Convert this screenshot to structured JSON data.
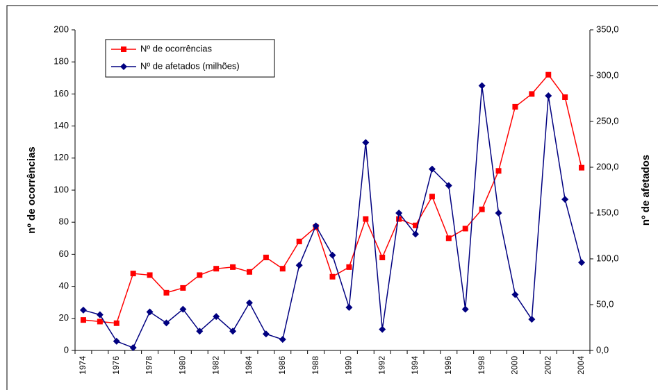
{
  "chart_data": {
    "type": "line",
    "categories": [
      "1974",
      null,
      "1976",
      null,
      "1978",
      null,
      "1980",
      null,
      "1982",
      null,
      "1984",
      null,
      "1986",
      null,
      "1988",
      null,
      "1990",
      null,
      "1992",
      null,
      "1994",
      null,
      "1996",
      null,
      "1998",
      null,
      "2000",
      null,
      "2002",
      null,
      "2004"
    ],
    "y_label": "nº de ocorrências",
    "y2_label": "nº de afetados",
    "ylim": [
      0,
      200
    ],
    "yticks": [
      0,
      20,
      40,
      60,
      80,
      100,
      120,
      140,
      160,
      180,
      200
    ],
    "y2lim": [
      0,
      350
    ],
    "y2ticks": [
      {
        "value": 0,
        "label": "0,0"
      },
      {
        "value": 50,
        "label": "50,0"
      },
      {
        "value": 100,
        "label": "100,0"
      },
      {
        "value": 150,
        "label": "150,0"
      },
      {
        "value": 200,
        "label": "200,0"
      },
      {
        "value": 250,
        "label": "250,0"
      },
      {
        "value": 300,
        "label": "300,0"
      },
      {
        "value": 350,
        "label": "350,0"
      }
    ],
    "legend": "top-left",
    "series": [
      {
        "name": "Nº de ocorrências",
        "color": "#ff0000",
        "marker": "square",
        "values": [
          19,
          18,
          17,
          48,
          47,
          36,
          39,
          47,
          51,
          52,
          49,
          58,
          51,
          68,
          77,
          46,
          52,
          82,
          58,
          82,
          78,
          96,
          70,
          76,
          88,
          112,
          152,
          160,
          172,
          158,
          114
        ]
      },
      {
        "name": "Nº de afetados (milhões)",
        "color": "#000080",
        "marker": "diamond",
        "axis": "y2",
        "values": [
          44,
          39,
          10,
          3,
          42,
          30,
          45,
          21,
          37,
          21,
          52,
          18,
          12,
          93,
          136,
          104,
          47,
          227,
          23,
          150,
          127,
          198,
          180,
          45,
          289,
          150,
          61,
          34,
          278,
          165,
          96
        ]
      }
    ]
  }
}
